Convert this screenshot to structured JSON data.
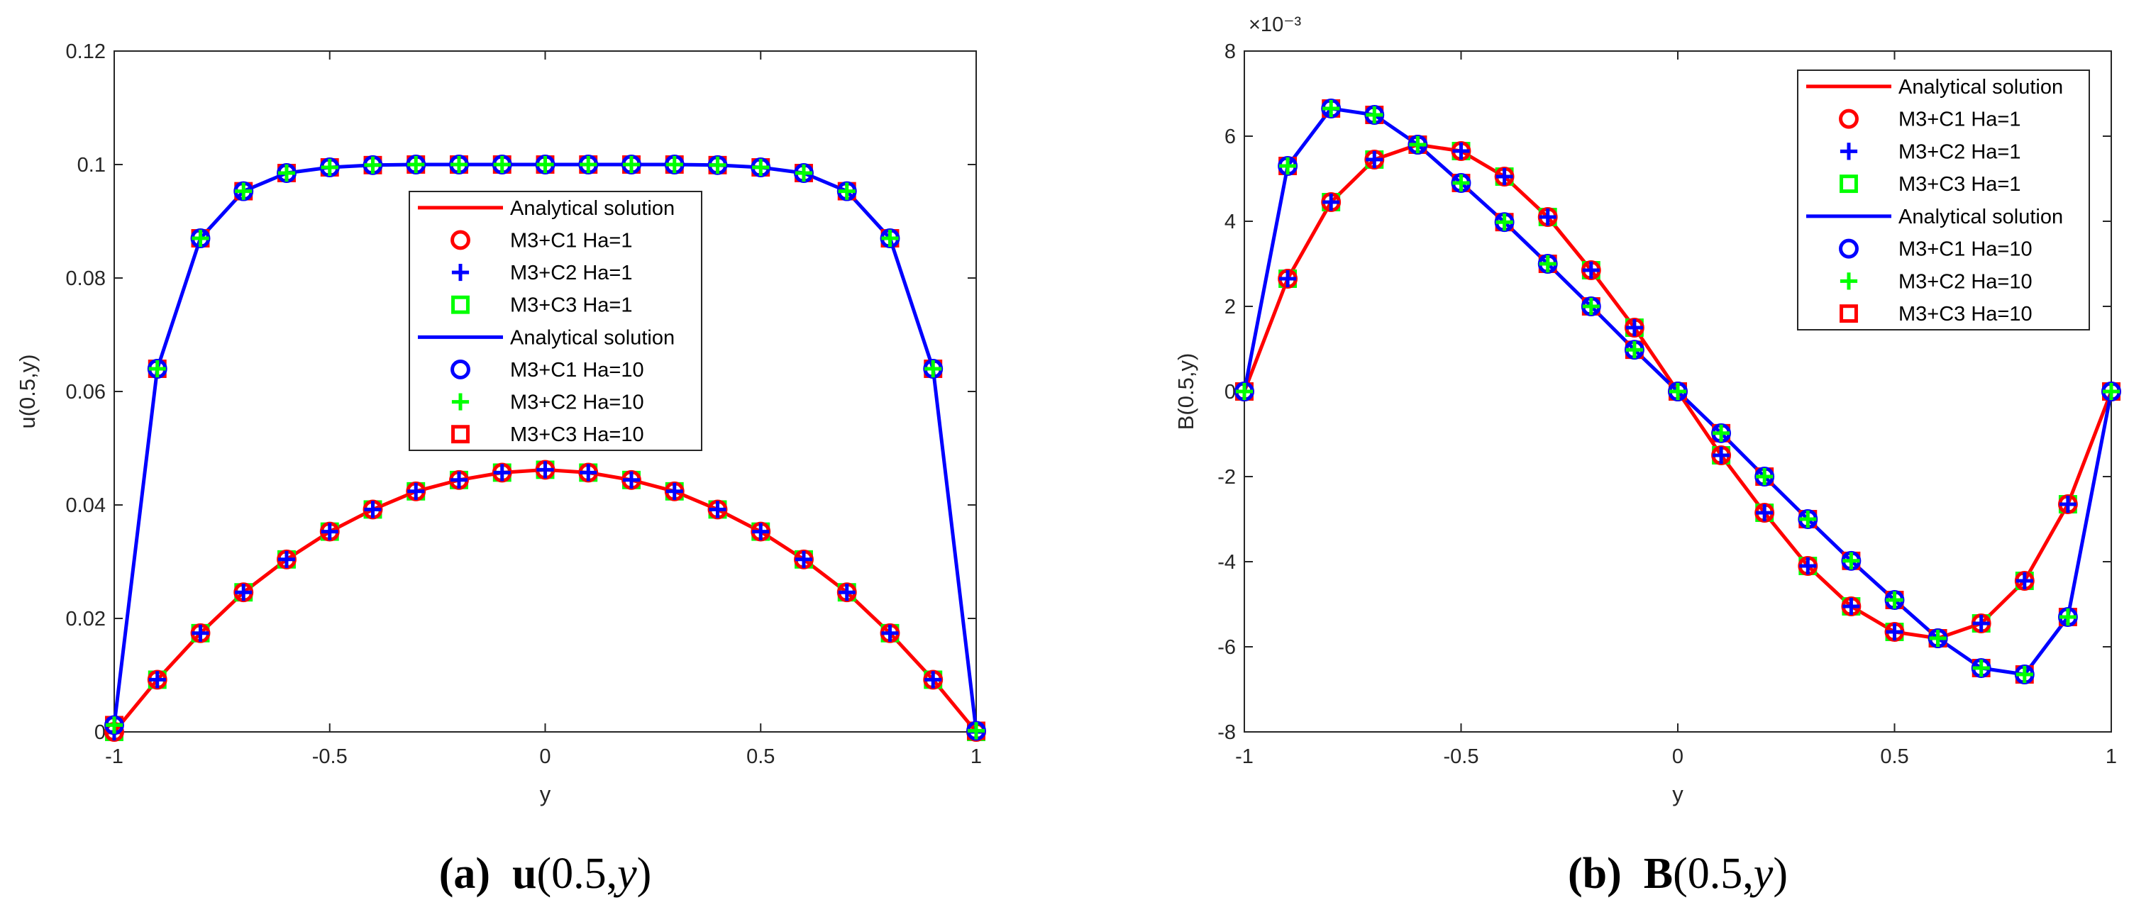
{
  "chart_data": [
    {
      "type": "line",
      "caption": {
        "tag": "(a)",
        "symbol": "u",
        "open": "(0.5,",
        "var": "y",
        "close": ")"
      },
      "xlabel": "y",
      "ylabel": "u(0.5,y)",
      "xlim": [
        -1,
        1
      ],
      "ylim": [
        0,
        0.12
      ],
      "xticks": [
        -1,
        -0.5,
        0,
        0.5,
        1
      ],
      "xtick_labels": [
        "-1",
        "-0.5",
        "0",
        "0.5",
        "1"
      ],
      "yticks": [
        0,
        0.02,
        0.04,
        0.06,
        0.08,
        0.1,
        0.12
      ],
      "ytick_labels": [
        "0",
        "0.02",
        "0.04",
        "0.06",
        "0.08",
        "0.1",
        "0.12"
      ],
      "exponent_label": "",
      "x": [
        -1,
        -0.9,
        -0.8,
        -0.7,
        -0.6,
        -0.5,
        -0.4,
        -0.3,
        -0.2,
        -0.1,
        0,
        0.1,
        0.2,
        0.3,
        0.4,
        0.5,
        0.6,
        0.7,
        0.8,
        0.9,
        1
      ],
      "series": [
        {
          "name": "Ha=1",
          "color": "#ff0000",
          "values": [
            0,
            0.0092,
            0.0174,
            0.0246,
            0.0304,
            0.0353,
            0.0392,
            0.0424,
            0.0444,
            0.0457,
            0.0462,
            0.0457,
            0.0444,
            0.0424,
            0.0392,
            0.0353,
            0.0304,
            0.0246,
            0.0174,
            0.0092,
            0
          ]
        },
        {
          "name": "Ha=10",
          "color": "#0000ff",
          "values": [
            0.0012,
            0.064,
            0.087,
            0.0953,
            0.0985,
            0.0995,
            0.0999,
            0.1,
            0.1,
            0.1,
            0.1,
            0.1,
            0.1,
            0.1,
            0.0999,
            0.0995,
            0.0985,
            0.0953,
            0.087,
            0.064,
            0.0002
          ]
        }
      ],
      "legend_position": "center",
      "legend": [
        {
          "label": "Analytical solution",
          "marker": "line",
          "color": "#ff0000"
        },
        {
          "label": "M3+C1 Ha=1",
          "marker": "circle",
          "color": "#ff0000"
        },
        {
          "label": "M3+C2 Ha=1",
          "marker": "plus",
          "color": "#0000ff"
        },
        {
          "label": "M3+C3 Ha=1",
          "marker": "square",
          "color": "#00ff00"
        },
        {
          "label": "Analytical solution",
          "marker": "line",
          "color": "#0000ff"
        },
        {
          "label": "M3+C1 Ha=10",
          "marker": "circle",
          "color": "#0000ff"
        },
        {
          "label": "M3+C2 Ha=10",
          "marker": "plus",
          "color": "#00ff00"
        },
        {
          "label": "M3+C3 Ha=10",
          "marker": "square",
          "color": "#ff0000"
        }
      ]
    },
    {
      "type": "line",
      "caption": {
        "tag": "(b)",
        "symbol": "B",
        "open": "(0.5,",
        "var": "y",
        "close": ")"
      },
      "xlabel": "y",
      "ylabel": "B(0.5,y)",
      "xlim": [
        -1,
        1
      ],
      "ylim": [
        -0.008,
        0.008
      ],
      "xticks": [
        -1,
        -0.5,
        0,
        0.5,
        1
      ],
      "xtick_labels": [
        "-1",
        "-0.5",
        "0",
        "0.5",
        "1"
      ],
      "yticks": [
        -0.008,
        -0.006,
        -0.004,
        -0.002,
        0,
        0.002,
        0.004,
        0.006,
        0.008
      ],
      "ytick_labels": [
        "-8",
        "-6",
        "-4",
        "-2",
        "0",
        "2",
        "4",
        "6",
        "8"
      ],
      "exponent_label": "×10⁻³",
      "x": [
        -1,
        -0.9,
        -0.8,
        -0.7,
        -0.6,
        -0.5,
        -0.4,
        -0.3,
        -0.2,
        -0.1,
        0,
        0.1,
        0.2,
        0.3,
        0.4,
        0.5,
        0.6,
        0.7,
        0.8,
        0.9,
        1
      ],
      "series": [
        {
          "name": "Ha=1",
          "color": "#ff0000",
          "values": [
            0,
            0.00265,
            0.00445,
            0.00545,
            0.0058,
            0.00565,
            0.00505,
            0.0041,
            0.00285,
            0.0015,
            0,
            -0.0015,
            -0.00285,
            -0.0041,
            -0.00505,
            -0.00565,
            -0.0058,
            -0.00545,
            -0.00445,
            -0.00265,
            0
          ]
        },
        {
          "name": "Ha=10",
          "color": "#0000ff",
          "values": [
            0,
            0.0053,
            0.00665,
            0.0065,
            0.0058,
            0.0049,
            0.00398,
            0.003,
            0.002,
            0.00098,
            0,
            -0.00098,
            -0.002,
            -0.003,
            -0.00398,
            -0.0049,
            -0.0058,
            -0.0065,
            -0.00665,
            -0.0053,
            0
          ]
        }
      ],
      "legend_position": "top-right",
      "legend": [
        {
          "label": "Analytical solution",
          "marker": "line",
          "color": "#ff0000"
        },
        {
          "label": "M3+C1 Ha=1",
          "marker": "circle",
          "color": "#ff0000"
        },
        {
          "label": "M3+C2 Ha=1",
          "marker": "plus",
          "color": "#0000ff"
        },
        {
          "label": "M3+C3 Ha=1",
          "marker": "square",
          "color": "#00ff00"
        },
        {
          "label": "Analytical solution",
          "marker": "line",
          "color": "#0000ff"
        },
        {
          "label": "M3+C1 Ha=10",
          "marker": "circle",
          "color": "#0000ff"
        },
        {
          "label": "M3+C2 Ha=10",
          "marker": "plus",
          "color": "#00ff00"
        },
        {
          "label": "M3+C3 Ha=10",
          "marker": "square",
          "color": "#ff0000"
        }
      ]
    }
  ]
}
